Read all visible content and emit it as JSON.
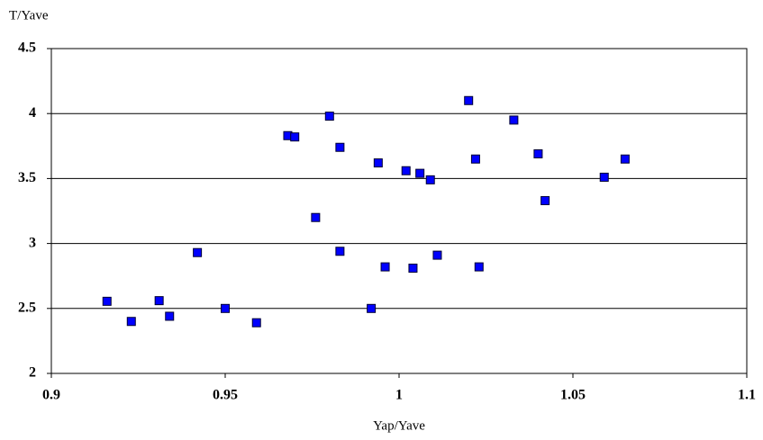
{
  "chart_data": {
    "type": "scatter",
    "y_label": "T/Yave",
    "x_label": "Yap/Yave",
    "series": [
      {
        "color": "#0000ff",
        "x": [
          0.916,
          0.923,
          0.931,
          0.934,
          0.942,
          0.95,
          0.959,
          0.968,
          0.97,
          0.98,
          0.976,
          0.983,
          0.983,
          0.992,
          0.994,
          0.996,
          1.002,
          1.004,
          1.006,
          1.009,
          1.011,
          1.02,
          1.022,
          1.023,
          1.033,
          1.04,
          1.042,
          1.059,
          1.065
        ],
        "values": [
          2.555,
          2.4,
          2.56,
          2.44,
          2.93,
          2.5,
          2.39,
          3.83,
          3.82,
          3.98,
          3.2,
          3.74,
          2.94,
          2.5,
          3.62,
          2.82,
          3.56,
          2.81,
          3.54,
          3.49,
          2.91,
          4.1,
          3.65,
          2.82,
          3.95,
          3.69,
          3.33,
          3.51,
          3.65
        ]
      }
    ],
    "xlim": [
      0.9,
      1.1
    ],
    "xticks": [
      0.9,
      0.95,
      1,
      1.05,
      1.1
    ],
    "ylim": [
      2,
      4.5
    ],
    "yticks": [
      2,
      2.5,
      3,
      3.5,
      4,
      4.5
    ],
    "grid": true
  }
}
